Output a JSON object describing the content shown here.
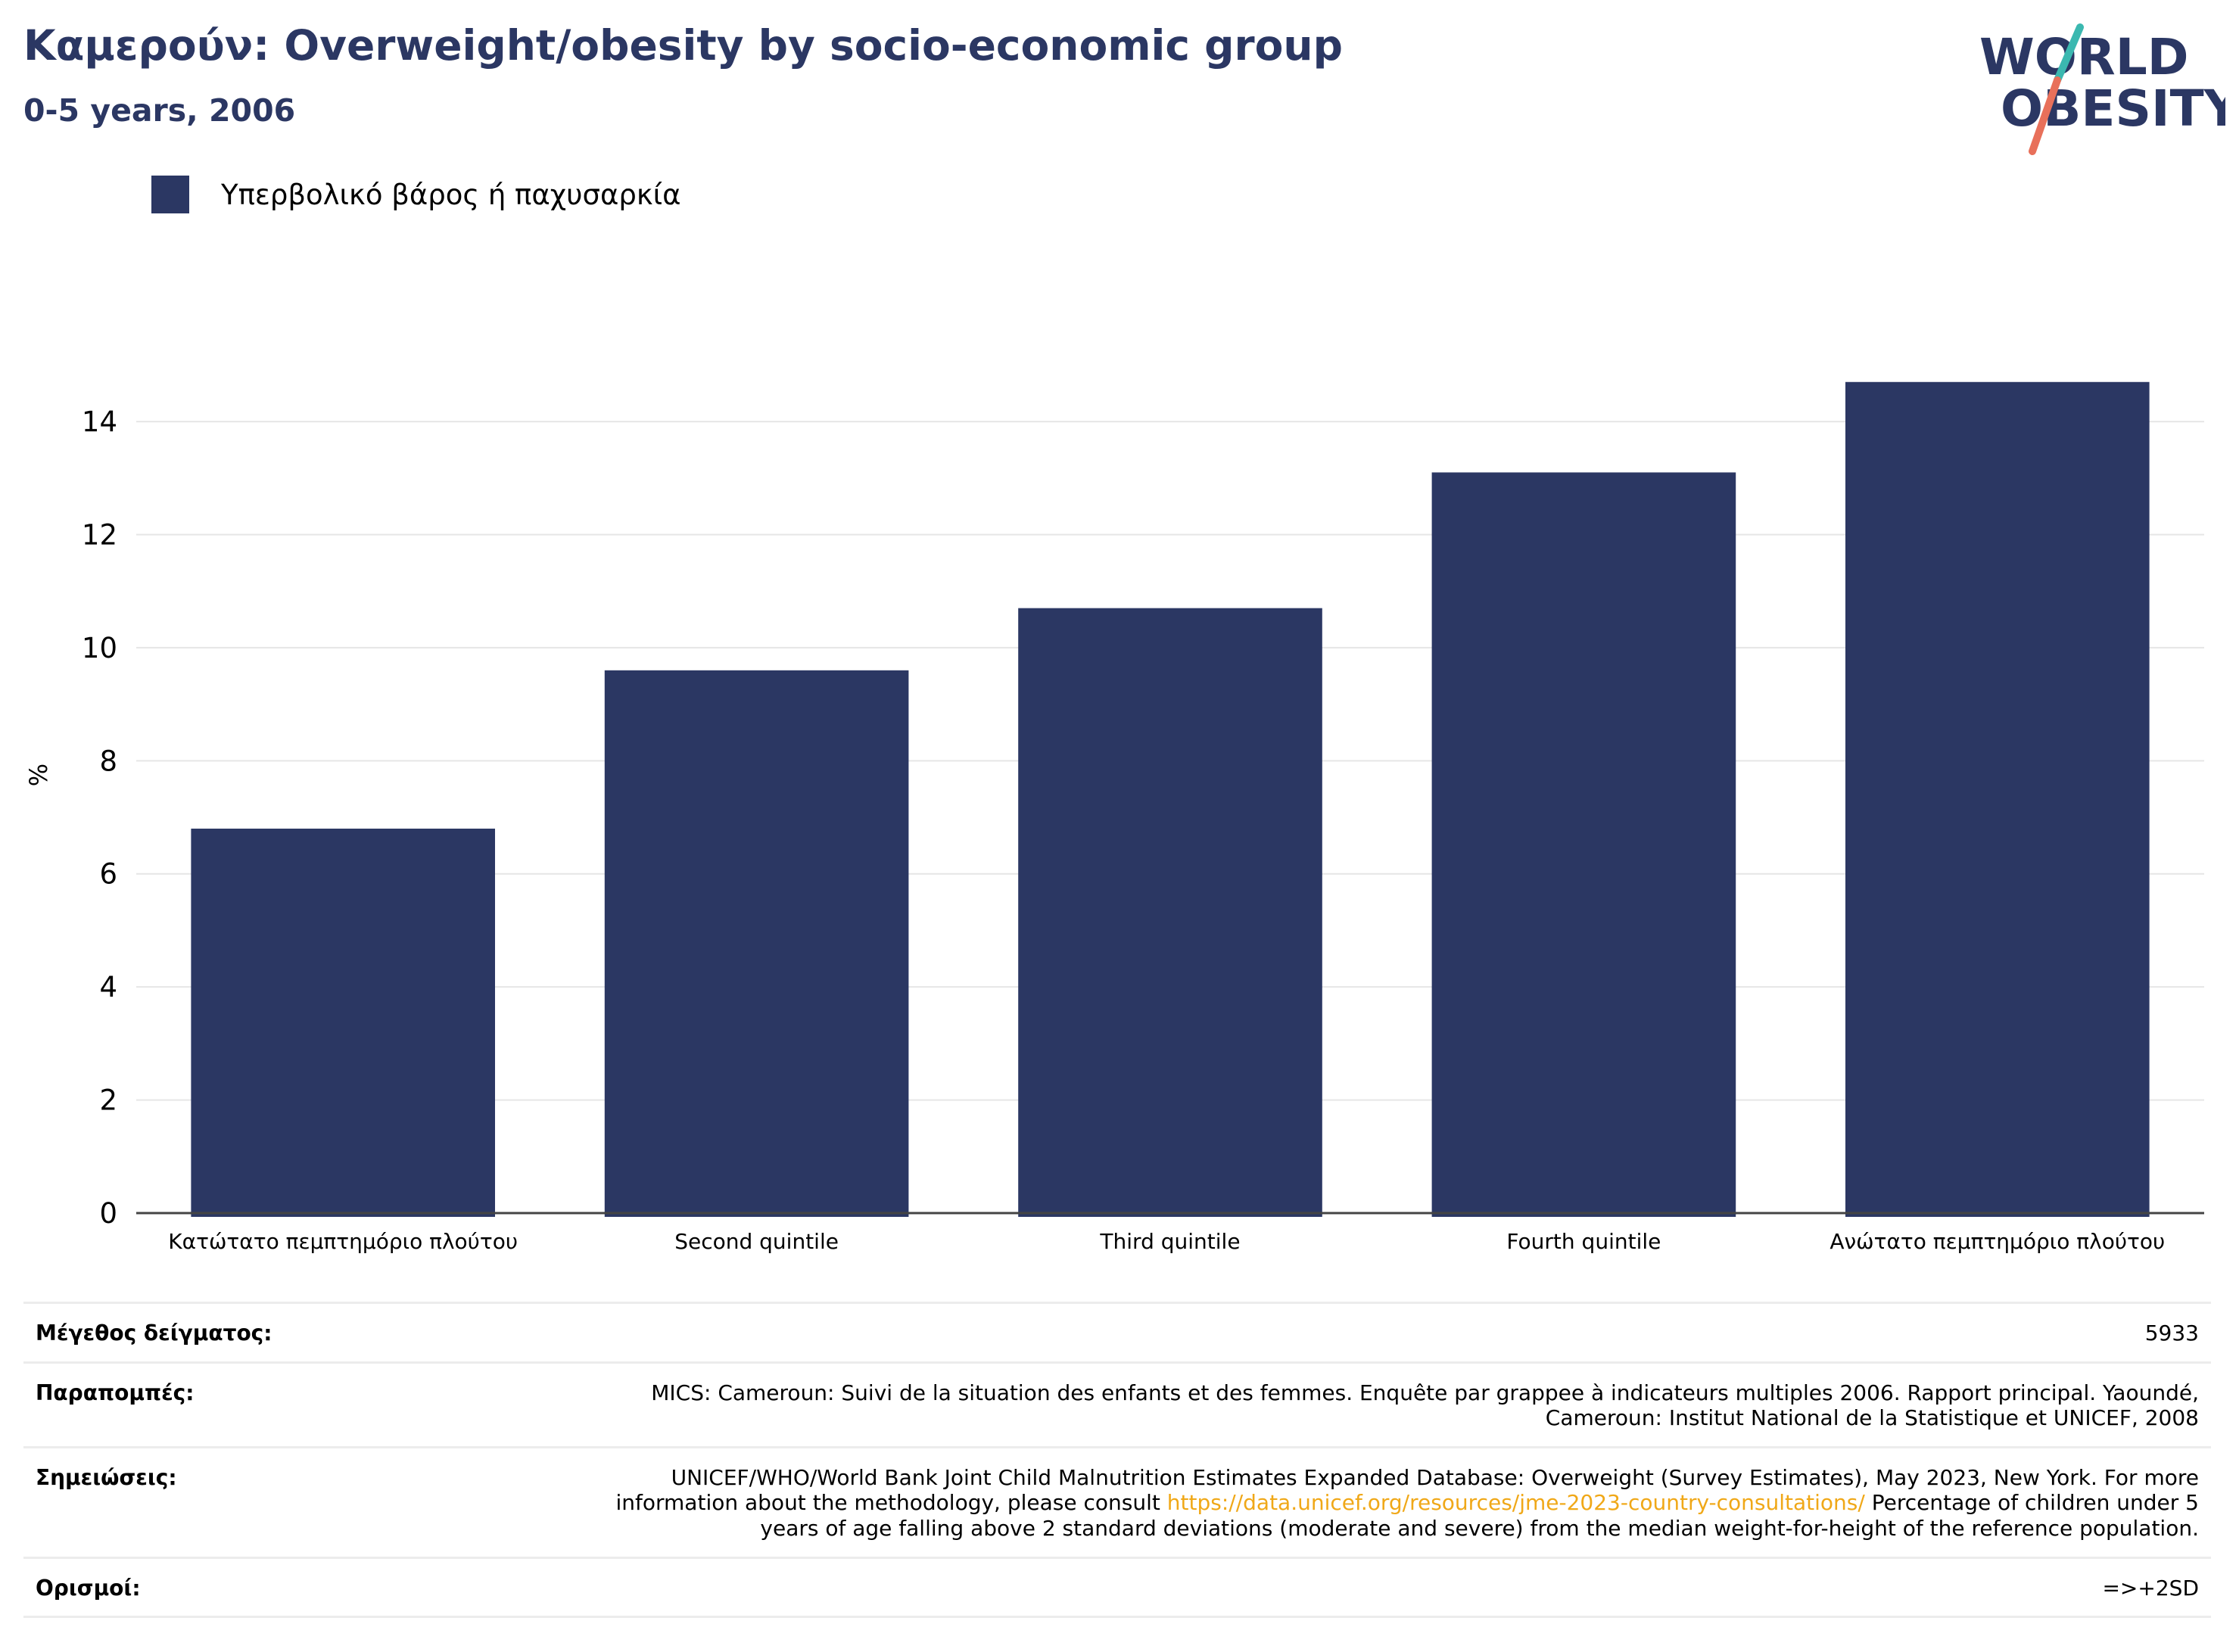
{
  "header": {
    "title": "Καμερούν: Overweight/obesity by socio-economic group",
    "subtitle": "0-5 years, 2006"
  },
  "logo": {
    "line1": "WORLD",
    "line2": "OBESITY",
    "colors": {
      "text": "#2b3763",
      "slash_top": "#3bb8b0",
      "slash_bottom": "#e8705a"
    }
  },
  "legend": {
    "label": "Υπερβολικό βάρος ή παχυσαρκία",
    "color": "#2b3763"
  },
  "chart_data": {
    "type": "bar",
    "categories": [
      "Κατώτατο πεμπτημόριο πλούτου",
      "Second quintile",
      "Third quintile",
      "Fourth quintile",
      "Ανώτατο πεμπτημόριο πλούτου"
    ],
    "series": [
      {
        "name": "Υπερβολικό βάρος ή παχυσαρκία",
        "values": [
          6.8,
          9.6,
          10.7,
          13.1,
          14.7
        ],
        "color": "#2b3763"
      }
    ],
    "ylabel": "%",
    "ylim": [
      0,
      15.5
    ],
    "yticks": [
      0,
      2,
      4,
      6,
      8,
      10,
      12,
      14
    ],
    "grid": true
  },
  "meta": {
    "sample_label": "Μέγεθος δείγματος:",
    "sample_value": "5933",
    "refs_label": "Παραπομπές:",
    "refs_value": "MICS: Cameroun: Suivi de la situation des enfants et des femmes. Enquête par grappee à indicateurs multiples 2006. Rapport principal. Yaoundé, Cameroun: Institut National de la Statistique et UNICEF, 2008",
    "notes_label": "Σημειώσεις:",
    "notes_before": "UNICEF/WHO/World Bank Joint Child Malnutrition Estimates Expanded Database: Overweight (Survey Estimates), May 2023, New York. For more information about the methodology, please consult ",
    "notes_link": "https://data.unicef.org/resources/jme-2023-country-consultations/",
    "notes_after": " Percentage of children under 5 years of age falling above 2 standard deviations (moderate and severe) from the median weight-for-height of the reference population.",
    "defs_label": "Ορισμοί:",
    "defs_value": "=>+2SD"
  }
}
